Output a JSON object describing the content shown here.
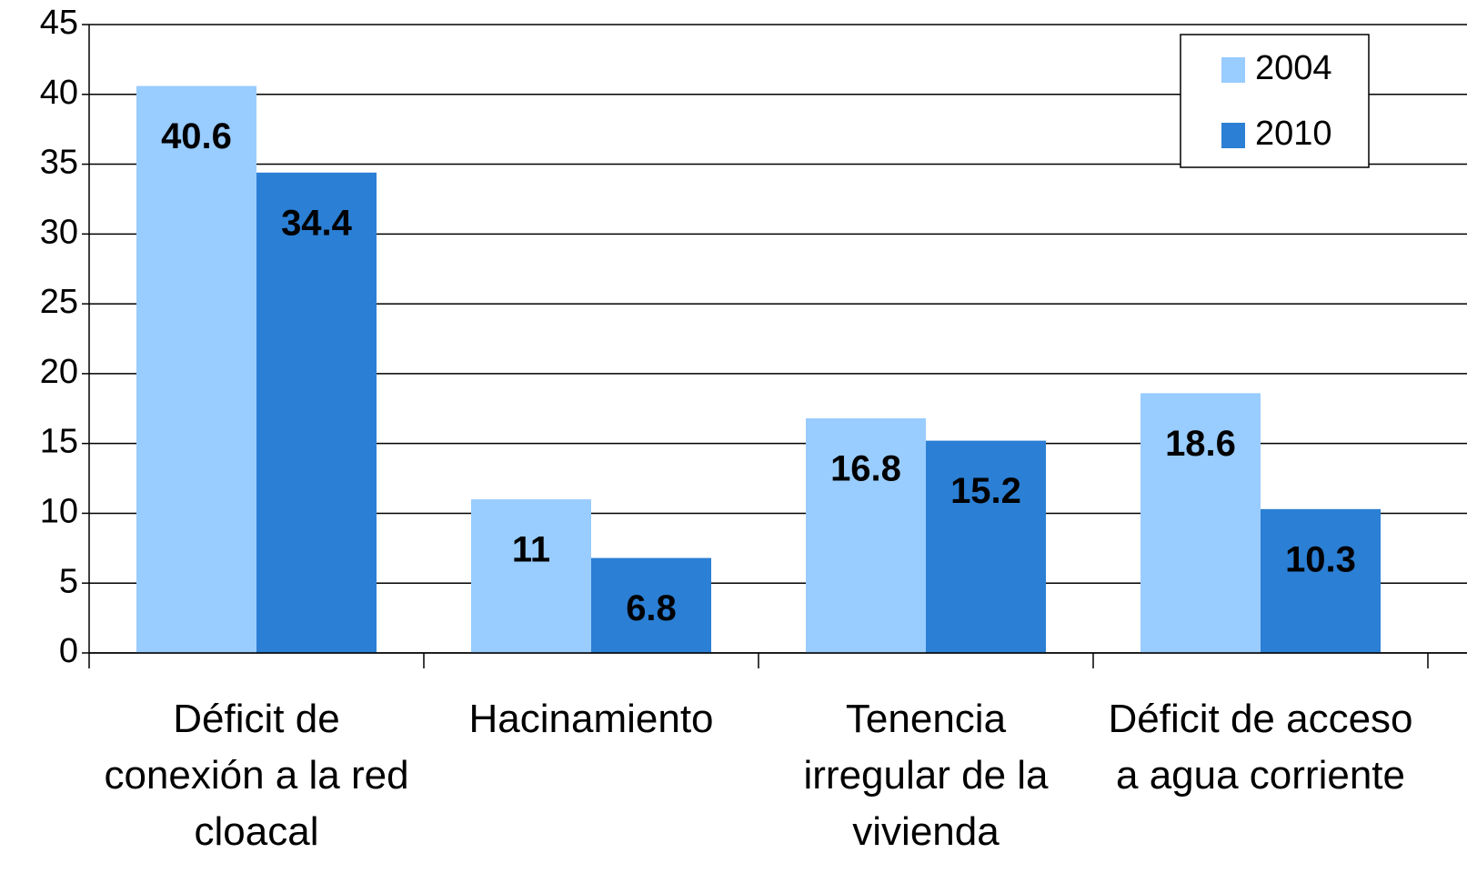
{
  "chart_data": {
    "type": "bar",
    "categories": [
      "Déficit de conexión a la red cloacal",
      "Hacinamiento",
      "Tenencia irregular de la vivienda",
      "Déficit de acceso a agua corriente"
    ],
    "series": [
      {
        "name": "2004",
        "color": "#99ccff",
        "values": [
          40.6,
          11,
          16.8,
          18.6
        ]
      },
      {
        "name": "2010",
        "color": "#2b7fd4",
        "values": [
          34.4,
          6.8,
          15.2,
          10.3
        ]
      }
    ],
    "ylim": [
      0,
      45
    ],
    "yticks": [
      0,
      5,
      10,
      15,
      20,
      25,
      30,
      35,
      40,
      45
    ],
    "grid": true,
    "legend": "top-right"
  }
}
